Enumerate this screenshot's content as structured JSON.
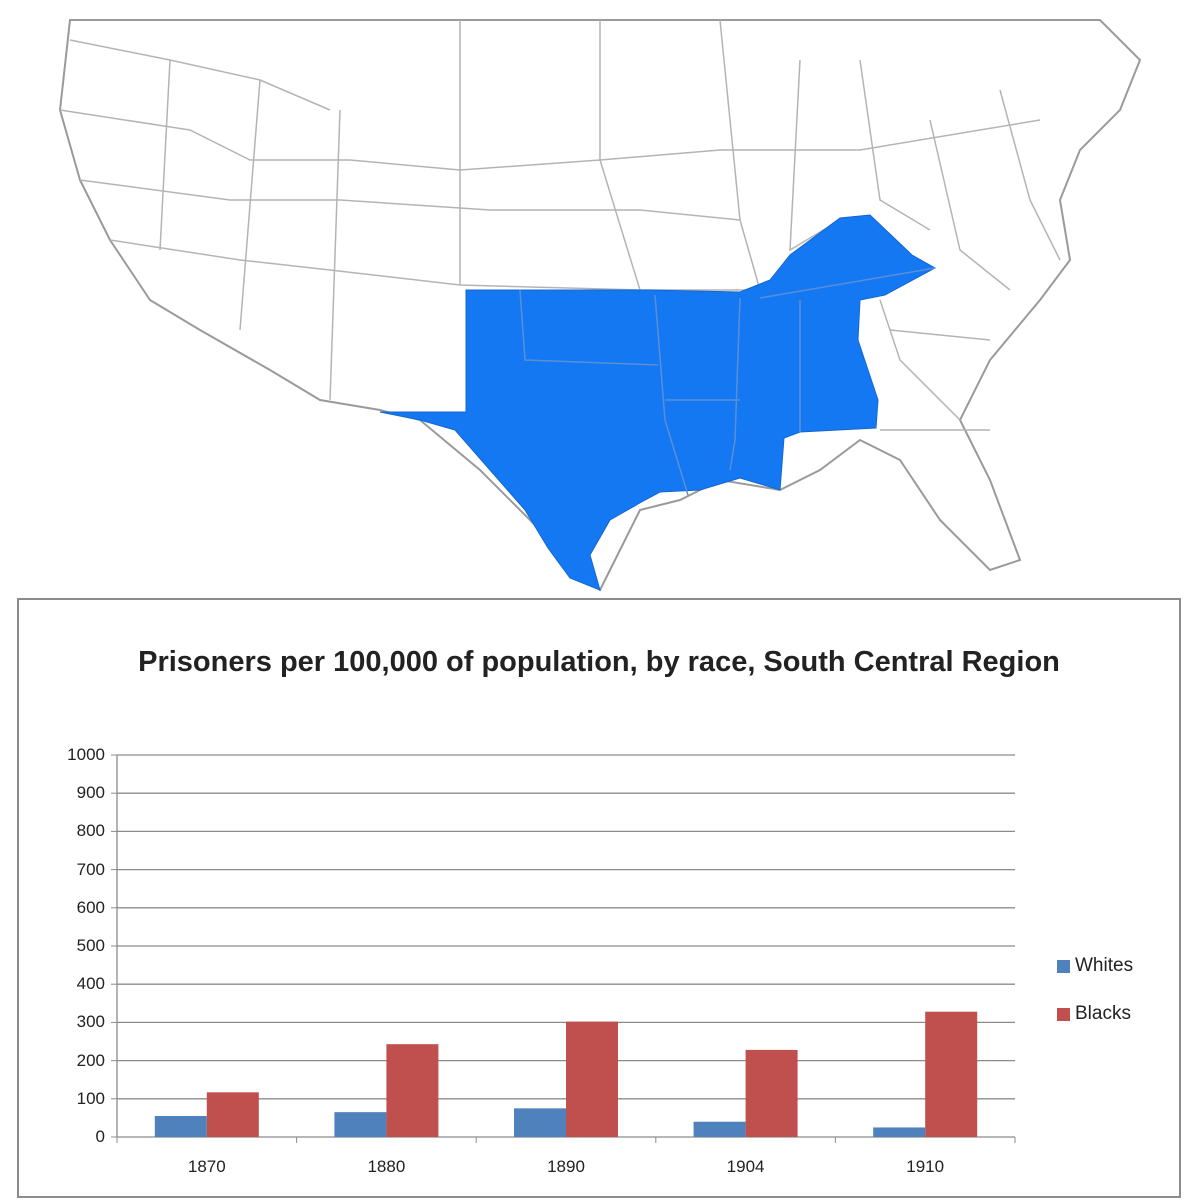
{
  "colors": {
    "highlight": "#1478f2",
    "map_stroke": "#9a9a9a",
    "whites_bar": "#4f81bd",
    "blacks_bar": "#c0504d",
    "gridline": "#8c8c8c"
  },
  "map": {
    "highlighted_region": "South Central"
  },
  "chart_data": {
    "type": "bar",
    "title": "Prisoners per 100,000 of population, by race, South Central Region",
    "categories": [
      "1870",
      "1880",
      "1890",
      "1904",
      "1910"
    ],
    "series": [
      {
        "name": "Whites",
        "values": [
          55,
          65,
          75,
          40,
          25
        ]
      },
      {
        "name": "Blacks",
        "values": [
          117,
          243,
          302,
          228,
          328
        ]
      }
    ],
    "ylim": [
      0,
      1000
    ],
    "yticks": [
      "0",
      "100",
      "200",
      "300",
      "400",
      "500",
      "600",
      "700",
      "800",
      "900",
      "1000"
    ],
    "grid": true,
    "legend": "right"
  }
}
